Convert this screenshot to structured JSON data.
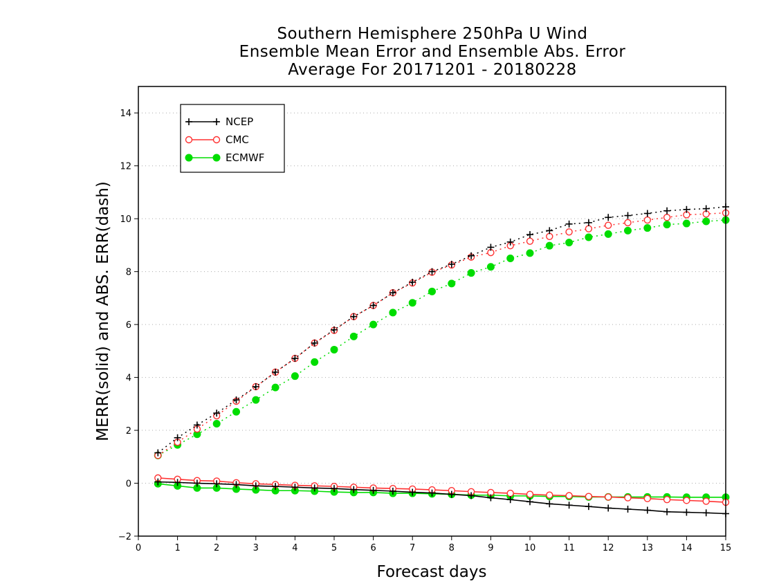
{
  "title_lines": [
    "Southern Hemisphere 250hPa U Wind",
    "Ensemble Mean Error and Ensemble Abs. Error",
    "Average For 20171201 - 20180228"
  ],
  "chart_data": {
    "type": "line",
    "title": "Southern Hemisphere 250hPa U Wind Ensemble Mean Error and Ensemble Abs. Error Average For 20171201 - 20180228",
    "xlabel": "Forecast days",
    "ylabel": "MERR(solid) and ABS. ERR(dash)",
    "xlim": [
      0,
      15
    ],
    "ylim": [
      -2,
      15
    ],
    "xticks": [
      0,
      1,
      2,
      3,
      4,
      5,
      6,
      7,
      8,
      9,
      10,
      11,
      12,
      13,
      14,
      15
    ],
    "yticks": [
      -2,
      0,
      2,
      4,
      6,
      8,
      10,
      12,
      14
    ],
    "grid": "horizontal dotted",
    "legend_position": "top-left",
    "x": [
      0.5,
      1,
      1.5,
      2,
      2.5,
      3,
      3.5,
      4,
      4.5,
      5,
      5.5,
      6,
      6.5,
      7,
      7.5,
      8,
      8.5,
      9,
      9.5,
      10,
      10.5,
      11,
      11.5,
      12,
      12.5,
      13,
      13.5,
      14,
      14.5,
      15
    ],
    "series": [
      {
        "name": "NCEP",
        "color": "#000000",
        "marker": "plus",
        "abs_err": [
          1.15,
          1.72,
          2.2,
          2.65,
          3.15,
          3.65,
          4.2,
          4.72,
          5.3,
          5.8,
          6.3,
          6.72,
          7.2,
          7.6,
          8.0,
          8.28,
          8.6,
          8.92,
          9.12,
          9.4,
          9.55,
          9.8,
          9.85,
          10.05,
          10.12,
          10.2,
          10.3,
          10.35,
          10.38,
          10.45
        ],
        "mean_err": [
          0.05,
          0.03,
          0.0,
          -0.02,
          -0.05,
          -0.1,
          -0.12,
          -0.15,
          -0.18,
          -0.2,
          -0.24,
          -0.27,
          -0.3,
          -0.34,
          -0.37,
          -0.42,
          -0.47,
          -0.55,
          -0.62,
          -0.7,
          -0.78,
          -0.83,
          -0.88,
          -0.94,
          -0.98,
          -1.02,
          -1.08,
          -1.1,
          -1.12,
          -1.15
        ]
      },
      {
        "name": "CMC",
        "color": "#ff3030",
        "marker": "open-circle",
        "abs_err": [
          1.05,
          1.55,
          2.05,
          2.55,
          3.1,
          3.65,
          4.2,
          4.72,
          5.3,
          5.78,
          6.3,
          6.72,
          7.2,
          7.57,
          7.98,
          8.25,
          8.55,
          8.72,
          8.98,
          9.15,
          9.33,
          9.5,
          9.62,
          9.75,
          9.85,
          9.95,
          10.05,
          10.15,
          10.18,
          10.22
        ],
        "mean_err": [
          0.2,
          0.15,
          0.1,
          0.08,
          0.02,
          -0.02,
          -0.05,
          -0.08,
          -0.1,
          -0.12,
          -0.15,
          -0.18,
          -0.2,
          -0.22,
          -0.25,
          -0.28,
          -0.32,
          -0.35,
          -0.38,
          -0.42,
          -0.45,
          -0.47,
          -0.5,
          -0.52,
          -0.55,
          -0.58,
          -0.62,
          -0.65,
          -0.68,
          -0.72
        ]
      },
      {
        "name": "ECMWF",
        "color": "#00dd00",
        "marker": "filled-circle",
        "abs_err": [
          1.05,
          1.45,
          1.85,
          2.25,
          2.7,
          3.15,
          3.62,
          4.05,
          4.58,
          5.05,
          5.55,
          6.0,
          6.45,
          6.82,
          7.25,
          7.55,
          7.95,
          8.18,
          8.5,
          8.7,
          8.98,
          9.1,
          9.3,
          9.42,
          9.55,
          9.65,
          9.78,
          9.82,
          9.9,
          9.95
        ],
        "mean_err": [
          -0.02,
          -0.1,
          -0.18,
          -0.18,
          -0.22,
          -0.25,
          -0.28,
          -0.28,
          -0.3,
          -0.33,
          -0.35,
          -0.35,
          -0.38,
          -0.38,
          -0.4,
          -0.42,
          -0.45,
          -0.45,
          -0.48,
          -0.48,
          -0.5,
          -0.5,
          -0.52,
          -0.52,
          -0.52,
          -0.52,
          -0.52,
          -0.53,
          -0.53,
          -0.53
        ]
      }
    ]
  }
}
